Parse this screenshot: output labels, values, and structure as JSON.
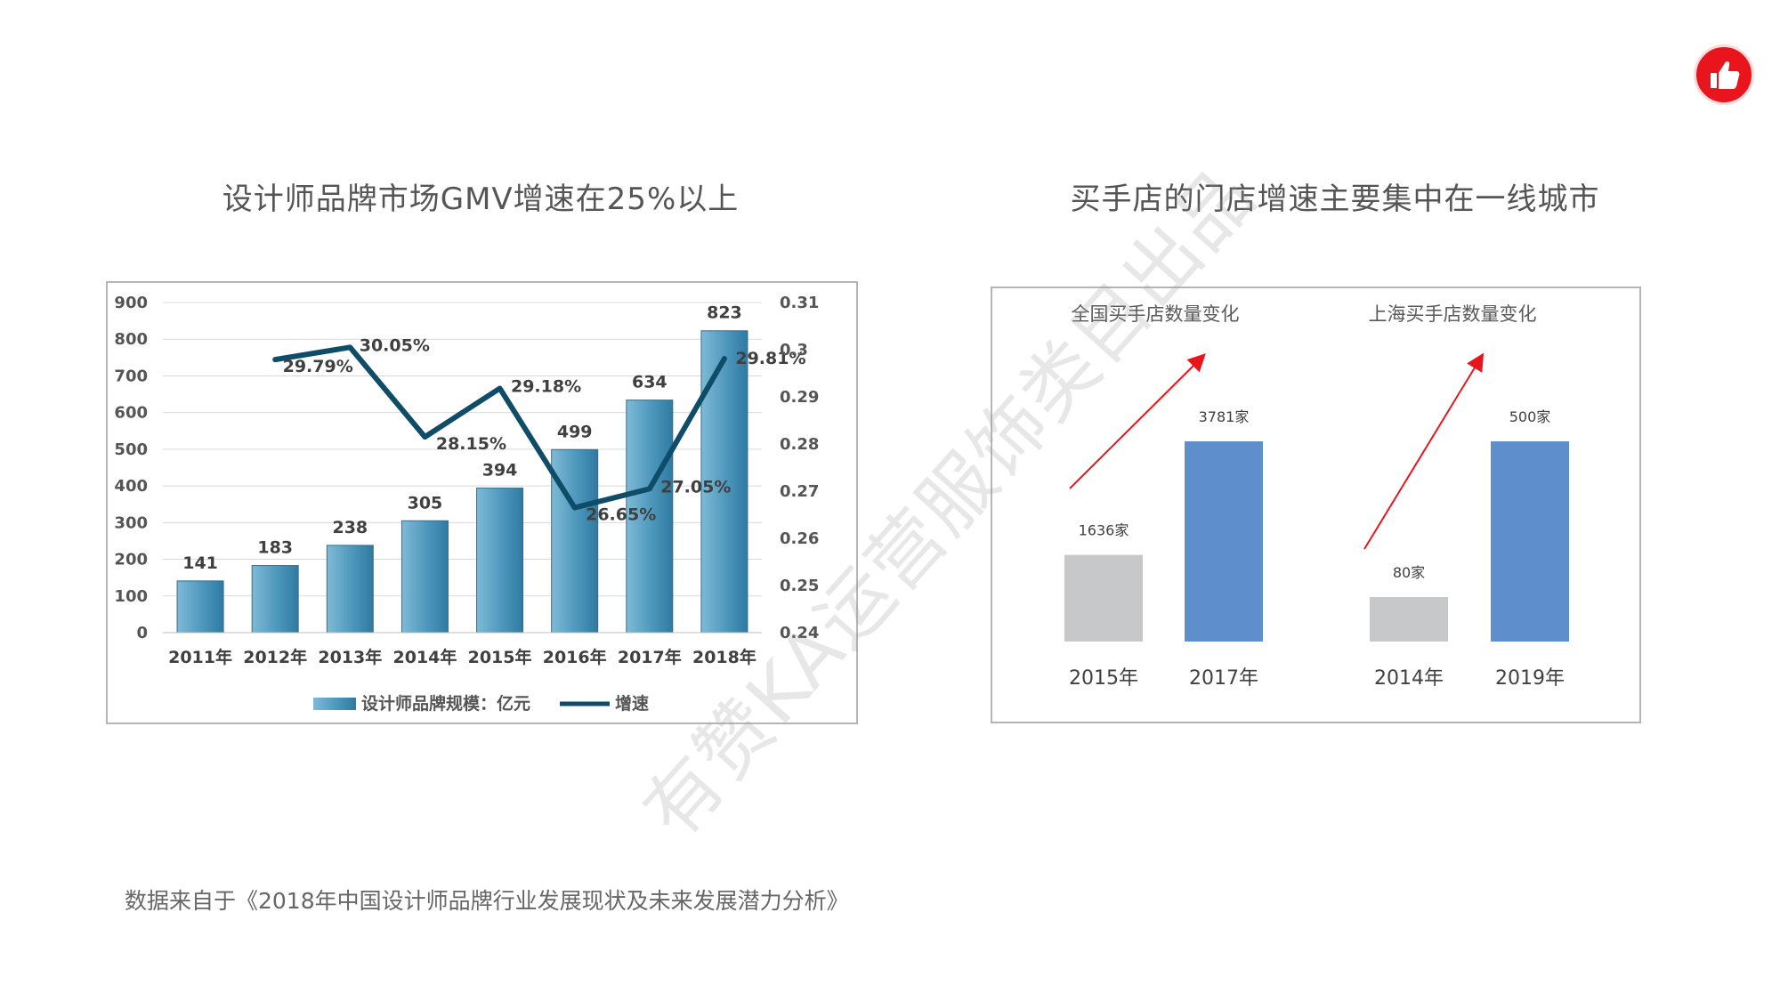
{
  "left_panel": {
    "heading": "设计师品牌市场GMV增速在25%以上",
    "legend_bar": "设计师品牌规模：亿元",
    "legend_line": "增速"
  },
  "right_panel": {
    "heading": "买手店的门店增速主要集中在一线城市",
    "group1_title": "全国买手店数量变化",
    "group2_title": "上海买手店数量变化"
  },
  "source_note": "数据来自于《2018年中国设计师品牌行业发展现状及未来发展潜力分析》",
  "watermark": "有赞KA运营服饰类目出品",
  "colors": {
    "bar": "#5aa5c7",
    "line": "#0e4c68",
    "gray_bar": "#c7c8ca",
    "blue_bar": "#5e8ecb",
    "arrow": "#e8151d",
    "badge": "#e8151d"
  },
  "icons": {
    "badge": "thumbs-up-icon"
  },
  "chart_data": [
    {
      "type": "bar",
      "categories": [
        "2011年",
        "2012年",
        "2013年",
        "2014年",
        "2015年",
        "2016年",
        "2017年",
        "2018年"
      ],
      "series": [
        {
          "name": "设计师品牌规模：亿元",
          "type": "bar",
          "axis": "left",
          "values": [
            141,
            183,
            238,
            305,
            394,
            499,
            634,
            823
          ],
          "labels": [
            "141",
            "183",
            "238",
            "305",
            "394",
            "499",
            "634",
            "823"
          ]
        },
        {
          "name": "增速",
          "type": "line",
          "axis": "right",
          "x": [
            "2012年",
            "2013年",
            "2014年",
            "2015年",
            "2016年",
            "2017年",
            "2018年"
          ],
          "values": [
            0.2979,
            0.3005,
            0.2815,
            0.2918,
            0.2665,
            0.2705,
            0.2981
          ],
          "labels": [
            "29.79%",
            "30.05%",
            "28.15%",
            "29.18%",
            "26.65%",
            "27.05%",
            "29.81%"
          ]
        }
      ],
      "yaxis_left": {
        "range": [
          0,
          900
        ],
        "ticks": [
          "0",
          "100",
          "200",
          "300",
          "400",
          "500",
          "600",
          "700",
          "800",
          "900"
        ]
      },
      "yaxis_right": {
        "range": [
          0.24,
          0.31
        ],
        "ticks": [
          "0.24",
          "0.25",
          "0.26",
          "0.27",
          "0.28",
          "0.29",
          "0.3",
          "0.31"
        ]
      },
      "grid": true,
      "legend": "bottom"
    },
    {
      "type": "bar",
      "groups": [
        {
          "title": "全国买手店数量变化",
          "categories": [
            "2015年",
            "2017年"
          ],
          "values": [
            1636,
            3781
          ],
          "labels": [
            "1636家",
            "3781家"
          ]
        },
        {
          "title": "上海买手店数量变化",
          "categories": [
            "2014年",
            "2019年"
          ],
          "values": [
            80,
            500
          ],
          "labels": [
            "80家",
            "500家"
          ]
        }
      ],
      "grid": false,
      "legend": "none"
    }
  ]
}
